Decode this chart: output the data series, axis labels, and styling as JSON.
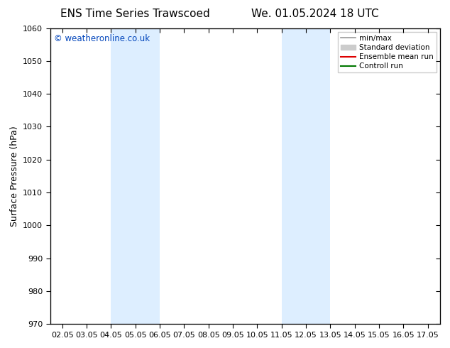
{
  "title_left": "ENS Time Series Trawscoed",
  "title_right": "We. 01.05.2024 18 UTC",
  "ylabel": "Surface Pressure (hPa)",
  "ylim": [
    970,
    1060
  ],
  "yticks": [
    970,
    980,
    990,
    1000,
    1010,
    1020,
    1030,
    1040,
    1050,
    1060
  ],
  "xlim": [
    1.55,
    17.55
  ],
  "xtick_positions": [
    2.05,
    3.05,
    4.05,
    5.05,
    6.05,
    7.05,
    8.05,
    9.05,
    10.05,
    11.05,
    12.05,
    13.05,
    14.05,
    15.05,
    16.05,
    17.05
  ],
  "xtick_labels": [
    "02.05",
    "03.05",
    "04.05",
    "05.05",
    "06.05",
    "07.05",
    "08.05",
    "09.05",
    "10.05",
    "11.05",
    "12.05",
    "13.05",
    "14.05",
    "15.05",
    "16.05",
    "17.05"
  ],
  "shaded_bands": [
    {
      "xmin": 4.05,
      "xmax": 6.05
    },
    {
      "xmin": 11.05,
      "xmax": 13.05
    }
  ],
  "band_color": "#ddeeff",
  "band_alpha": 1.0,
  "copyright_text": "© weatheronline.co.uk",
  "copyright_color": "#0044bb",
  "legend_items": [
    {
      "label": "min/max",
      "color": "#999999",
      "lw": 1.2,
      "ls": "-",
      "type": "line"
    },
    {
      "label": "Standard deviation",
      "color": "#cccccc",
      "lw": 5,
      "ls": "-",
      "type": "patch"
    },
    {
      "label": "Ensemble mean run",
      "color": "#dd0000",
      "lw": 1.5,
      "ls": "-",
      "type": "line"
    },
    {
      "label": "Controll run",
      "color": "#007700",
      "lw": 1.5,
      "ls": "-",
      "type": "line"
    }
  ],
  "bg_color": "#ffffff",
  "title_fontsize": 11,
  "label_fontsize": 9,
  "tick_fontsize": 8
}
